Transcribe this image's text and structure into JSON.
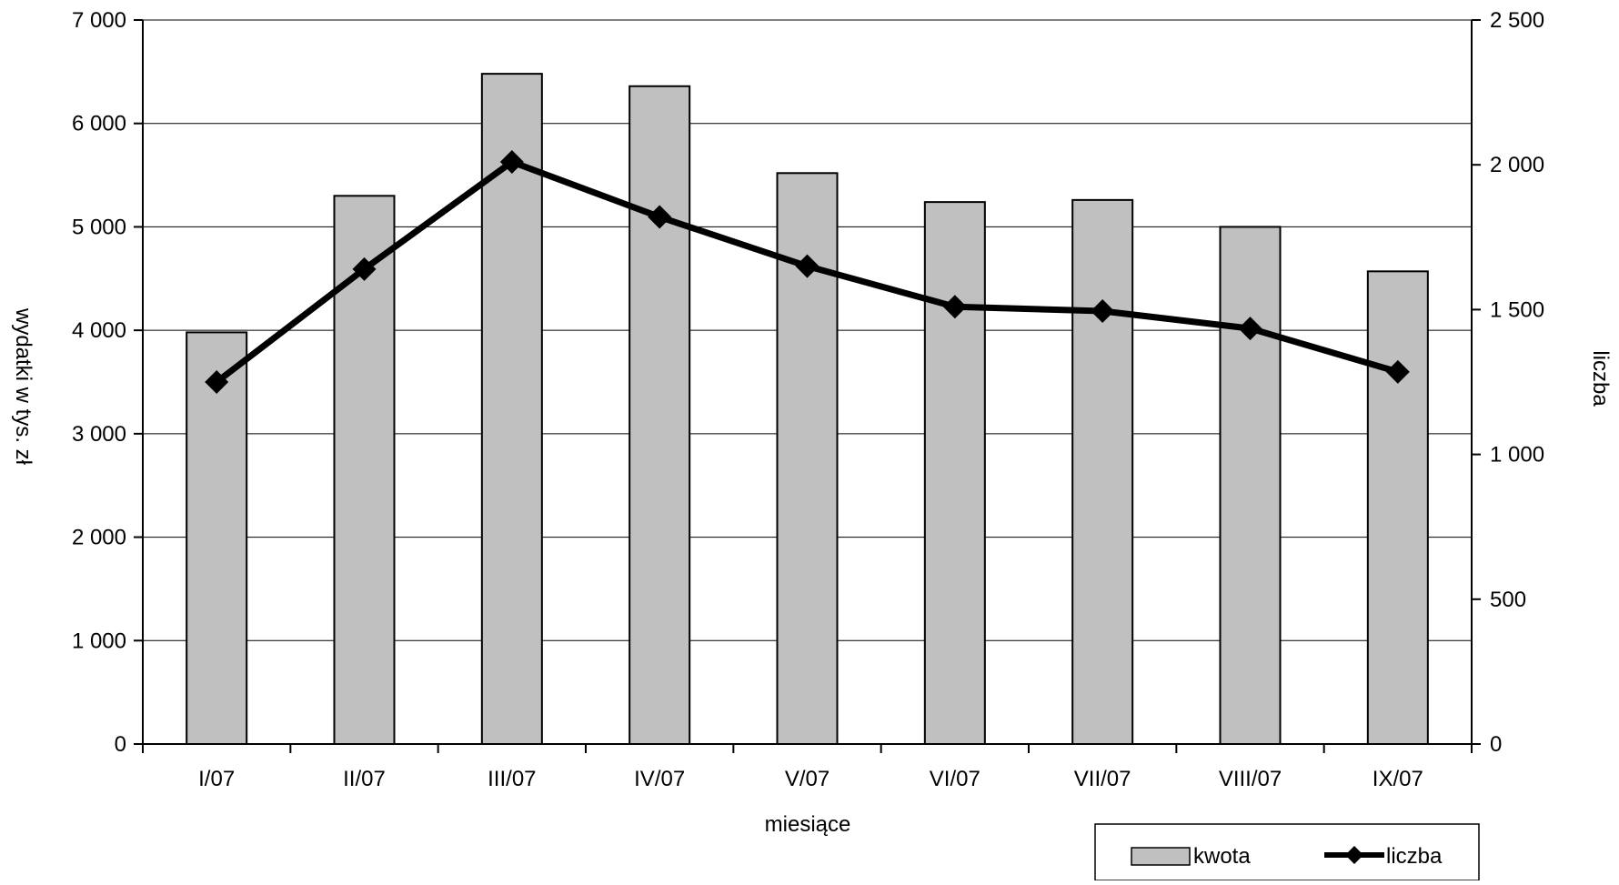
{
  "chart_data": {
    "type": "bar",
    "title": "",
    "xlabel": "miesiące",
    "ylabel": "wydatki w tys. zł",
    "y2label": "liczba",
    "categories": [
      "I/07",
      "II/07",
      "III/07",
      "IV/07",
      "V/07",
      "VI/07",
      "VII/07",
      "VIII/07",
      "IX/07"
    ],
    "ylim": [
      0,
      7000
    ],
    "y2lim": [
      0,
      2500
    ],
    "yticks": [
      0,
      1000,
      2000,
      3000,
      4000,
      5000,
      6000,
      7000
    ],
    "ytick_labels": [
      "0",
      "1 000",
      "2 000",
      "3 000",
      "4 000",
      "5 000",
      "6 000",
      "7 000"
    ],
    "y2ticks": [
      0,
      500,
      1000,
      1500,
      2000,
      2500
    ],
    "y2tick_labels": [
      "0",
      "500",
      "1 000",
      "1 500",
      "2 000",
      "2 500"
    ],
    "grid": true,
    "legend_position": "bottom-right",
    "series": [
      {
        "name": "kwota",
        "type": "bar",
        "axis": "left",
        "color": "#c0c0c0",
        "values": [
          3980,
          5300,
          6480,
          6360,
          5520,
          5240,
          5260,
          5000,
          4570
        ]
      },
      {
        "name": "liczba",
        "type": "line",
        "axis": "right",
        "color": "#000000",
        "marker": "diamond",
        "values": [
          1250,
          1640,
          2010,
          1820,
          1650,
          1510,
          1495,
          1435,
          1285
        ]
      }
    ]
  }
}
